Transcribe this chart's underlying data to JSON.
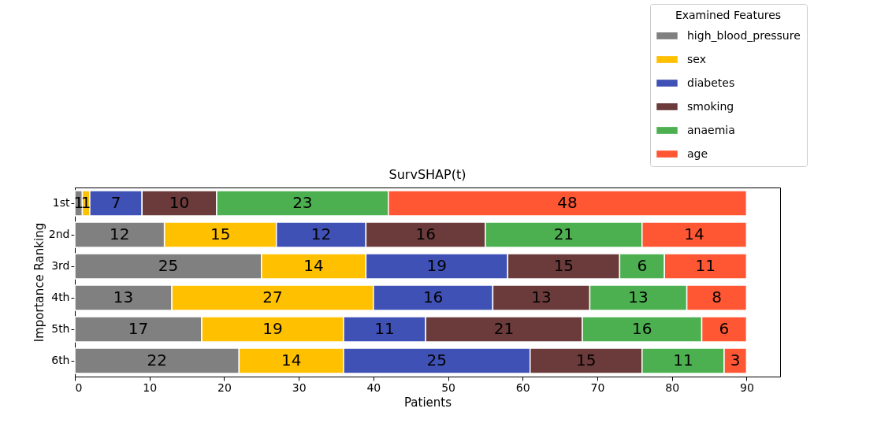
{
  "chart_data": {
    "type": "bar",
    "orientation": "horizontal",
    "stacked": true,
    "title": "SurvSHAP(t)",
    "xlabel": "Patients",
    "ylabel": "Importance Ranking",
    "legend_title": "Examined Features",
    "legend": "top right",
    "data_labels": true,
    "grid": false,
    "categories": [
      "1st",
      "2nd",
      "3rd",
      "4th",
      "5th",
      "6th"
    ],
    "xlim": [
      0,
      94.5
    ],
    "xticks": [
      0,
      10,
      20,
      30,
      40,
      50,
      60,
      70,
      80,
      90
    ],
    "series": [
      {
        "name": "high_blood_pressure",
        "color": "#808080",
        "values": [
          1,
          12,
          25,
          13,
          17,
          22
        ]
      },
      {
        "name": "sex",
        "color": "#ffc000",
        "values": [
          1,
          15,
          14,
          27,
          19,
          14
        ]
      },
      {
        "name": "diabetes",
        "color": "#3f51b5",
        "values": [
          7,
          12,
          19,
          16,
          11,
          25
        ]
      },
      {
        "name": "smoking",
        "color": "#6b3a3a",
        "values": [
          10,
          16,
          15,
          13,
          21,
          15
        ]
      },
      {
        "name": "anaemia",
        "color": "#4caf50",
        "values": [
          23,
          21,
          6,
          13,
          16,
          11
        ]
      },
      {
        "name": "age",
        "color": "#ff5733",
        "values": [
          48,
          14,
          11,
          8,
          6,
          3
        ]
      }
    ]
  }
}
